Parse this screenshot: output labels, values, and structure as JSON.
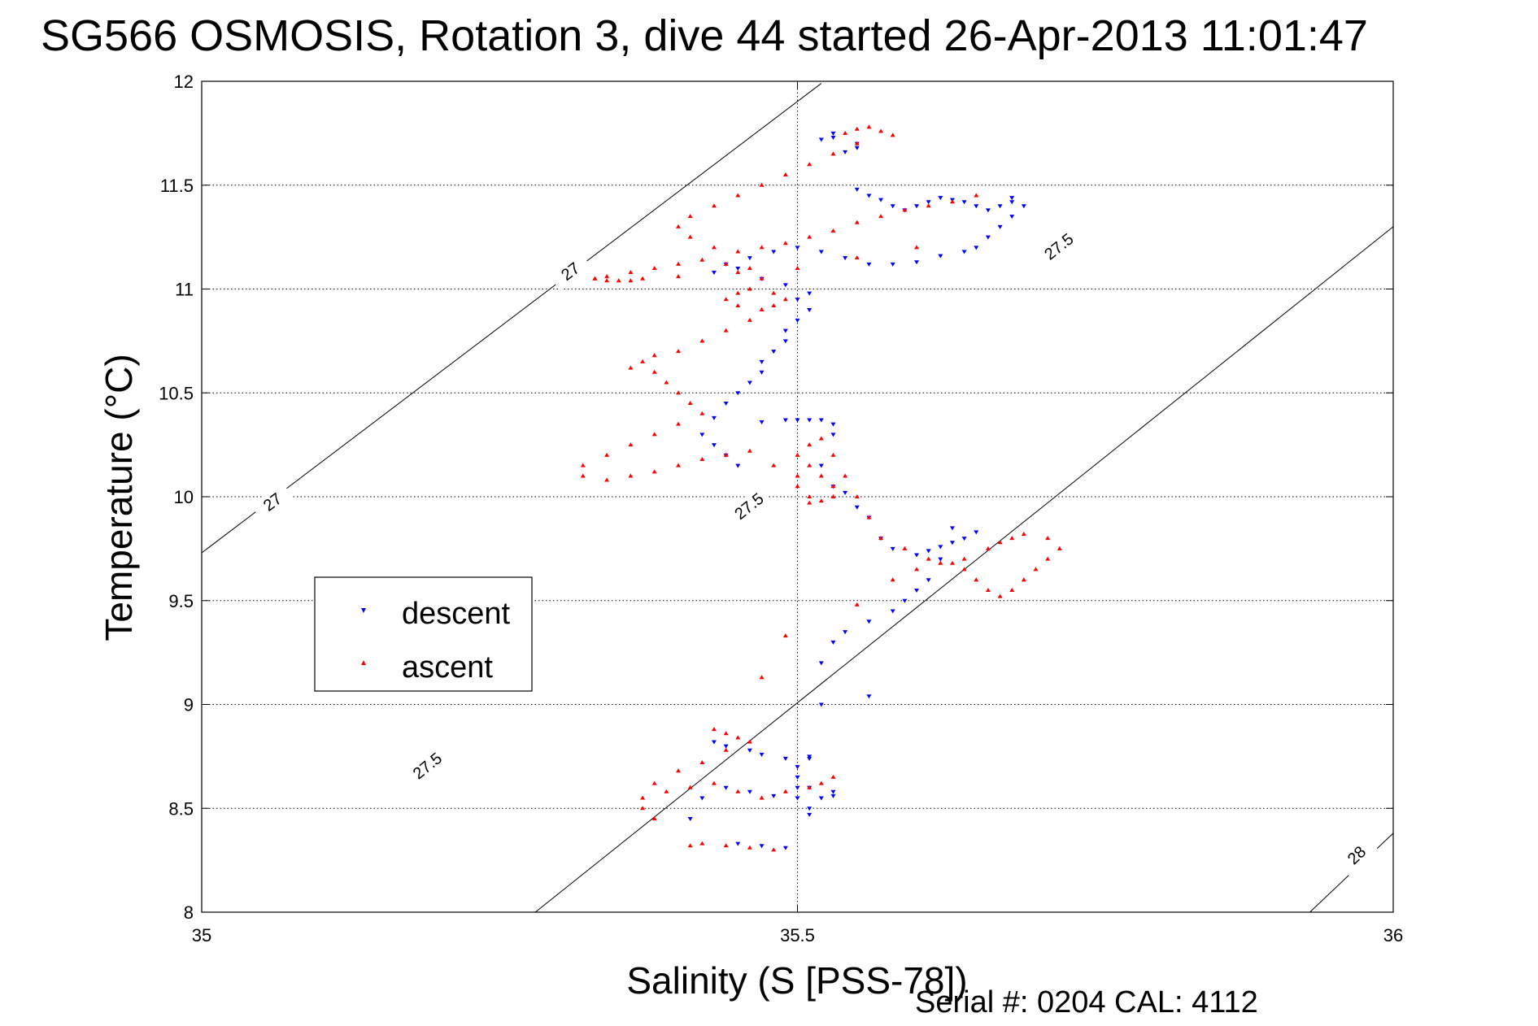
{
  "chart_data": {
    "type": "scatter",
    "title": "SG566 OSMOSIS, Rotation 3, dive 44 started 26-Apr-2013 11:01:47",
    "xlabel": "Salinity (S [PSS-78])",
    "ylabel": "Temperature (°C)",
    "xlim": [
      35,
      36
    ],
    "ylim": [
      8,
      12
    ],
    "x_ticks": [
      "35",
      "35.5",
      "36"
    ],
    "y_ticks": [
      "8",
      "8.5",
      "9",
      "9.5",
      "10",
      "10.5",
      "11",
      "11.5",
      "12"
    ],
    "grid": true,
    "legend_position": "left",
    "footer": "Serial #: 0204  CAL: 4112",
    "series": [
      {
        "name": "descent",
        "marker": "triangle-down",
        "color": "#0000ff",
        "x": [
          35.53,
          35.53,
          35.52,
          35.55,
          35.55,
          35.54,
          35.55,
          35.56,
          35.57,
          35.58,
          35.59,
          35.6,
          35.61,
          35.62,
          35.63,
          35.64,
          35.65,
          35.66,
          35.67,
          35.68,
          35.68,
          35.69,
          35.68,
          35.67,
          35.66,
          35.65,
          35.64,
          35.62,
          35.6,
          35.58,
          35.56,
          35.54,
          35.52,
          35.5,
          35.48,
          35.46,
          35.44,
          35.43,
          35.45,
          35.47,
          35.49,
          35.51,
          35.5,
          35.51,
          35.5,
          35.49,
          35.49,
          35.48,
          35.47,
          35.47,
          35.46,
          35.45,
          35.44,
          35.43,
          35.42,
          35.43,
          35.44,
          35.45,
          35.47,
          35.49,
          35.5,
          35.51,
          35.52,
          35.53,
          35.53,
          35.52,
          35.53,
          35.54,
          35.55,
          35.56,
          35.57,
          35.58,
          35.6,
          35.61,
          35.62,
          35.63,
          35.64,
          35.65,
          35.63,
          35.62,
          35.61,
          35.6,
          35.59,
          35.58,
          35.56,
          35.54,
          35.53,
          35.52,
          35.52,
          35.51,
          35.51,
          35.5,
          35.5,
          35.5,
          35.51,
          35.51,
          35.56,
          35.43,
          35.44,
          35.46,
          35.47,
          35.49,
          35.51,
          35.53,
          35.53,
          35.52,
          35.5,
          35.48,
          35.46,
          35.44,
          35.42,
          35.41,
          35.45,
          35.47,
          35.49
        ],
        "y": [
          11.75,
          11.73,
          11.72,
          11.7,
          11.68,
          11.66,
          11.48,
          11.45,
          11.43,
          11.4,
          11.38,
          11.4,
          11.42,
          11.44,
          11.43,
          11.42,
          11.4,
          11.38,
          11.4,
          11.42,
          11.44,
          11.4,
          11.35,
          11.3,
          11.25,
          11.2,
          11.18,
          11.16,
          11.13,
          11.12,
          11.12,
          11.15,
          11.18,
          11.2,
          11.18,
          11.15,
          11.12,
          11.08,
          11.1,
          11.05,
          11.02,
          10.98,
          10.95,
          10.9,
          10.85,
          10.8,
          10.75,
          10.7,
          10.65,
          10.6,
          10.55,
          10.5,
          10.45,
          10.38,
          10.3,
          10.25,
          10.2,
          10.15,
          10.36,
          10.37,
          10.37,
          10.37,
          10.37,
          10.35,
          10.3,
          10.15,
          10.05,
          10.02,
          9.95,
          9.9,
          9.8,
          9.75,
          9.72,
          9.74,
          9.76,
          9.78,
          9.8,
          9.83,
          9.85,
          9.7,
          9.6,
          9.55,
          9.5,
          9.45,
          9.4,
          9.35,
          9.3,
          9.2,
          9.0,
          8.75,
          8.74,
          8.7,
          8.65,
          8.6,
          8.5,
          8.47,
          9.04,
          8.82,
          8.8,
          8.78,
          8.76,
          8.74,
          8.6,
          8.58,
          8.56,
          8.55,
          8.55,
          8.56,
          8.58,
          8.6,
          8.55,
          8.45,
          8.33,
          8.32,
          8.31
        ]
      },
      {
        "name": "ascent",
        "marker": "triangle-up",
        "color": "#ff0000",
        "x": [
          35.54,
          35.55,
          35.56,
          35.57,
          35.58,
          35.55,
          35.53,
          35.51,
          35.49,
          35.47,
          35.45,
          35.43,
          35.41,
          35.4,
          35.41,
          35.43,
          35.45,
          35.47,
          35.49,
          35.51,
          35.53,
          35.55,
          35.57,
          35.59,
          35.61,
          35.63,
          35.65,
          35.6,
          35.55,
          35.5,
          35.45,
          35.4,
          35.37,
          35.36,
          35.35,
          35.34,
          35.33,
          35.33,
          35.34,
          35.36,
          35.38,
          35.4,
          35.42,
          35.44,
          35.46,
          35.47,
          35.46,
          35.45,
          35.44,
          35.45,
          35.47,
          35.48,
          35.49,
          35.48,
          35.47,
          35.46,
          35.44,
          35.42,
          35.4,
          35.38,
          35.37,
          35.36,
          35.38,
          35.39,
          35.4,
          35.41,
          35.42,
          35.4,
          35.38,
          35.36,
          35.34,
          35.32,
          35.32,
          35.34,
          35.36,
          35.38,
          35.4,
          35.42,
          35.44,
          35.46,
          35.48,
          35.5,
          35.5,
          35.51,
          35.51,
          35.52,
          35.53,
          35.53,
          35.52,
          35.51,
          35.5,
          35.51,
          35.52,
          35.53,
          35.54,
          35.55,
          35.56,
          35.57,
          35.59,
          35.61,
          35.63,
          35.64,
          35.65,
          35.66,
          35.67,
          35.68,
          35.69,
          35.7,
          35.71,
          35.72,
          35.71,
          35.69,
          35.68,
          35.67,
          35.66,
          35.64,
          35.62,
          35.6,
          35.58,
          35.55,
          35.49,
          35.47,
          35.43,
          35.44,
          35.45,
          35.46,
          35.44,
          35.42,
          35.4,
          35.38,
          35.37,
          35.37,
          35.38,
          35.39,
          35.41,
          35.43,
          35.45,
          35.47,
          35.49,
          35.51,
          35.52,
          35.53,
          35.48,
          35.46,
          35.44,
          35.42,
          35.41
        ],
        "y": [
          11.75,
          11.77,
          11.78,
          11.76,
          11.74,
          11.7,
          11.65,
          11.6,
          11.55,
          11.5,
          11.45,
          11.4,
          11.35,
          11.3,
          11.25,
          11.2,
          11.18,
          11.2,
          11.22,
          11.25,
          11.28,
          11.32,
          11.35,
          11.38,
          11.4,
          11.42,
          11.45,
          11.2,
          11.15,
          11.1,
          11.08,
          11.06,
          11.05,
          11.04,
          11.04,
          11.04,
          11.05,
          11.05,
          11.06,
          11.08,
          11.1,
          11.12,
          11.14,
          11.12,
          11.1,
          11.05,
          11.0,
          10.98,
          10.95,
          10.92,
          10.9,
          10.92,
          10.95,
          10.98,
          10.9,
          10.85,
          10.8,
          10.75,
          10.7,
          10.68,
          10.65,
          10.62,
          10.6,
          10.55,
          10.5,
          10.45,
          10.4,
          10.35,
          10.3,
          10.25,
          10.2,
          10.15,
          10.1,
          10.08,
          10.1,
          10.12,
          10.15,
          10.18,
          10.2,
          10.22,
          10.15,
          10.1,
          10.05,
          10.0,
          9.97,
          9.98,
          10.0,
          10.05,
          10.1,
          10.15,
          10.2,
          10.25,
          10.28,
          10.2,
          10.1,
          10.0,
          9.9,
          9.8,
          9.75,
          9.7,
          9.68,
          9.65,
          9.6,
          9.55,
          9.52,
          9.55,
          9.6,
          9.65,
          9.7,
          9.75,
          9.8,
          9.82,
          9.8,
          9.78,
          9.75,
          9.7,
          9.68,
          9.65,
          9.6,
          9.48,
          9.33,
          9.13,
          8.88,
          8.86,
          8.84,
          8.82,
          8.78,
          8.72,
          8.68,
          8.62,
          8.55,
          8.5,
          8.45,
          8.58,
          8.6,
          8.62,
          8.58,
          8.55,
          8.58,
          8.6,
          8.62,
          8.65,
          8.3,
          8.31,
          8.32,
          8.33,
          8.32
        ]
      }
    ],
    "isopycnals": [
      {
        "label": "27",
        "points": [
          [
            35,
            9.73
          ],
          [
            35.52,
            11.99
          ]
        ],
        "label_positions": [
          [
            35.06,
            9.97
          ],
          [
            35.31,
            11.08
          ]
        ]
      },
      {
        "label": "27.5",
        "points": [
          [
            35.28,
            8
          ],
          [
            36,
            11.3
          ]
        ],
        "label_positions": [
          [
            35.19,
            8.7
          ],
          [
            35.46,
            9.95
          ],
          [
            35.72,
            11.2
          ]
        ]
      },
      {
        "label": "28",
        "points": [
          [
            35.93,
            8
          ],
          [
            36,
            8.38
          ]
        ],
        "label_positions": [
          [
            35.97,
            8.27
          ]
        ]
      }
    ]
  }
}
